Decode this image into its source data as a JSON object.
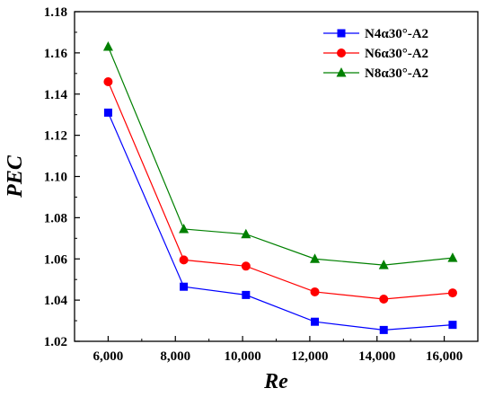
{
  "chart_data": {
    "type": "line",
    "xlabel": "Re",
    "ylabel": "PEC",
    "xlim": [
      5000,
      17000
    ],
    "ylim": [
      1.02,
      1.18
    ],
    "x_ticks": [
      6000,
      8000,
      10000,
      12000,
      14000,
      16000
    ],
    "x_tick_labels": [
      "6,000",
      "8,000",
      "10,000",
      "12,000",
      "14,000",
      "16,000"
    ],
    "y_ticks": [
      1.02,
      1.04,
      1.06,
      1.08,
      1.1,
      1.12,
      1.14,
      1.16,
      1.18
    ],
    "y_tick_labels": [
      "1.02",
      "1.04",
      "1.06",
      "1.08",
      "1.10",
      "1.12",
      "1.14",
      "1.16",
      "1.18"
    ],
    "x": [
      6000,
      8250,
      10100,
      12150,
      14200,
      16250
    ],
    "series": [
      {
        "name": "N4α30°-A2",
        "color": "#0000ff",
        "marker": "square",
        "values": [
          1.131,
          1.0465,
          1.0425,
          1.0295,
          1.0255,
          1.028
        ]
      },
      {
        "name": "N6α30°-A2",
        "color": "#ff0000",
        "marker": "circle",
        "values": [
          1.146,
          1.0595,
          1.0565,
          1.044,
          1.0405,
          1.0435
        ]
      },
      {
        "name": "N8α30°-A2",
        "color": "#008000",
        "marker": "triangle",
        "values": [
          1.163,
          1.0745,
          1.072,
          1.06,
          1.057,
          1.0605
        ]
      }
    ],
    "legend_position": "top-right",
    "grid": false
  }
}
